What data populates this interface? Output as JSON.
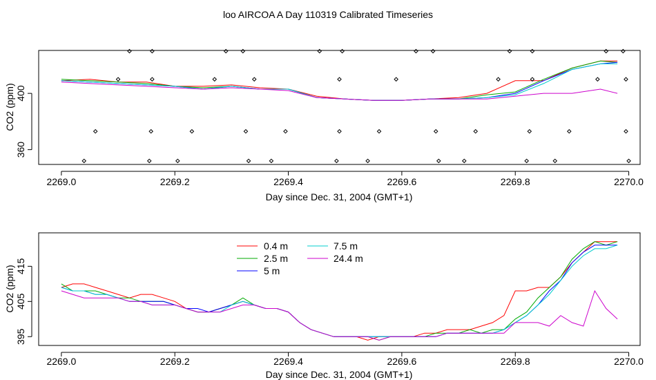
{
  "title": "loo AIRCOA A  Day 110319  Calibrated Timeseries",
  "chart_data": [
    {
      "type": "line",
      "xlabel": "Day since Dec. 31, 2004 (GMT+1)",
      "ylabel": "CO2 (ppm)",
      "xlim": [
        2268.96,
        2270.02
      ],
      "ylim": [
        349.5,
        430.5
      ],
      "xticks": [
        2269.0,
        2269.2,
        2269.4,
        2269.6,
        2269.8,
        2270.0
      ],
      "xtick_labels": [
        "2269.0",
        "2269.2",
        "2269.4",
        "2269.6",
        "2269.8",
        "2270.0"
      ],
      "yticks": [
        360,
        400
      ],
      "ytick_labels": [
        "360",
        "400"
      ],
      "grid": false,
      "x": [
        2269.0,
        2269.05,
        2269.1,
        2269.15,
        2269.2,
        2269.25,
        2269.3,
        2269.35,
        2269.4,
        2269.45,
        2269.5,
        2269.55,
        2269.6,
        2269.65,
        2269.7,
        2269.75,
        2269.8,
        2269.85,
        2269.9,
        2269.95,
        2269.98
      ],
      "series": [
        {
          "name": "0.4 m",
          "color": "#ff0000",
          "values": [
            409,
            410,
            408,
            408,
            405,
            405,
            406,
            404,
            403,
            398,
            396,
            395,
            395,
            396,
            397,
            400,
            409,
            409,
            418,
            423,
            423
          ]
        },
        {
          "name": "2.5 m",
          "color": "#00aa00",
          "values": [
            410,
            409,
            408,
            407,
            405,
            404,
            405,
            403,
            403,
            397,
            396,
            395,
            395,
            396,
            396,
            399,
            401,
            410,
            418,
            423,
            422
          ]
        },
        {
          "name": "5 m",
          "color": "#0000ff",
          "values": [
            409,
            408,
            407,
            406,
            405,
            403,
            405,
            403,
            403,
            397,
            396,
            395,
            395,
            396,
            396,
            397,
            400,
            409,
            417,
            421,
            422
          ]
        },
        {
          "name": "7.5 m",
          "color": "#00cccc",
          "values": [
            409,
            408,
            407,
            406,
            405,
            403,
            405,
            403,
            403,
            397,
            396,
            395,
            395,
            396,
            396,
            397,
            399,
            407,
            417,
            421,
            421
          ]
        },
        {
          "name": "24.4 m",
          "color": "#cc00cc",
          "values": [
            408,
            407,
            406,
            405,
            404,
            403,
            404,
            403,
            402,
            397,
            396,
            395,
            395,
            396,
            396,
            396,
            398,
            400,
            400,
            403,
            400
          ]
        }
      ],
      "markers": [
        {
          "x": 2269.04,
          "y": 352
        },
        {
          "x": 2269.06,
          "y": 373
        },
        {
          "x": 2269.1,
          "y": 410
        },
        {
          "x": 2269.12,
          "y": 430
        },
        {
          "x": 2269.155,
          "y": 352
        },
        {
          "x": 2269.158,
          "y": 373
        },
        {
          "x": 2269.16,
          "y": 410
        },
        {
          "x": 2269.16,
          "y": 430
        },
        {
          "x": 2269.205,
          "y": 352
        },
        {
          "x": 2269.23,
          "y": 373
        },
        {
          "x": 2269.27,
          "y": 410
        },
        {
          "x": 2269.29,
          "y": 430
        },
        {
          "x": 2269.32,
          "y": 430
        },
        {
          "x": 2269.325,
          "y": 373
        },
        {
          "x": 2269.33,
          "y": 352
        },
        {
          "x": 2269.34,
          "y": 410
        },
        {
          "x": 2269.37,
          "y": 352
        },
        {
          "x": 2269.395,
          "y": 373
        },
        {
          "x": 2269.455,
          "y": 430
        },
        {
          "x": 2269.485,
          "y": 352
        },
        {
          "x": 2269.49,
          "y": 373
        },
        {
          "x": 2269.49,
          "y": 410
        },
        {
          "x": 2269.495,
          "y": 430
        },
        {
          "x": 2269.54,
          "y": 352
        },
        {
          "x": 2269.56,
          "y": 373
        },
        {
          "x": 2269.59,
          "y": 410
        },
        {
          "x": 2269.625,
          "y": 430
        },
        {
          "x": 2269.655,
          "y": 430
        },
        {
          "x": 2269.66,
          "y": 373
        },
        {
          "x": 2269.665,
          "y": 352
        },
        {
          "x": 2269.71,
          "y": 352
        },
        {
          "x": 2269.73,
          "y": 373
        },
        {
          "x": 2269.77,
          "y": 410
        },
        {
          "x": 2269.79,
          "y": 430
        },
        {
          "x": 2269.82,
          "y": 352
        },
        {
          "x": 2269.825,
          "y": 373
        },
        {
          "x": 2269.83,
          "y": 410
        },
        {
          "x": 2269.83,
          "y": 430
        },
        {
          "x": 2269.87,
          "y": 352
        },
        {
          "x": 2269.895,
          "y": 373
        },
        {
          "x": 2269.945,
          "y": 410
        },
        {
          "x": 2269.96,
          "y": 430
        },
        {
          "x": 2269.99,
          "y": 430
        },
        {
          "x": 2269.995,
          "y": 373
        },
        {
          "x": 2269.995,
          "y": 410
        },
        {
          "x": 2270.0,
          "y": 352
        }
      ]
    },
    {
      "type": "line",
      "xlabel": "Day since Dec. 31, 2004 (GMT+1)",
      "ylabel": "CO2 (ppm)",
      "xlim": [
        2268.96,
        2270.02
      ],
      "ylim": [
        392.5,
        424.5
      ],
      "xticks": [
        2269.0,
        2269.2,
        2269.4,
        2269.6,
        2269.8,
        2270.0
      ],
      "xtick_labels": [
        "2269.0",
        "2269.2",
        "2269.4",
        "2269.6",
        "2269.8",
        "2270.0"
      ],
      "yticks": [
        395,
        405,
        415
      ],
      "ytick_labels": [
        "395",
        "405",
        "415"
      ],
      "grid": false,
      "legend": "top-left",
      "x": [
        2269.0,
        2269.02,
        2269.04,
        2269.06,
        2269.08,
        2269.1,
        2269.12,
        2269.14,
        2269.16,
        2269.18,
        2269.2,
        2269.22,
        2269.24,
        2269.26,
        2269.28,
        2269.3,
        2269.32,
        2269.34,
        2269.36,
        2269.38,
        2269.4,
        2269.42,
        2269.44,
        2269.46,
        2269.48,
        2269.5,
        2269.52,
        2269.54,
        2269.56,
        2269.58,
        2269.6,
        2269.62,
        2269.64,
        2269.66,
        2269.68,
        2269.7,
        2269.72,
        2269.74,
        2269.76,
        2269.78,
        2269.8,
        2269.82,
        2269.84,
        2269.86,
        2269.88,
        2269.9,
        2269.92,
        2269.94,
        2269.96,
        2269.98
      ],
      "series": [
        {
          "name": "0.4 m",
          "color": "#ff0000",
          "values": [
            409,
            410,
            410,
            409,
            408,
            407,
            406,
            407,
            407,
            406,
            405,
            403,
            402,
            402,
            403,
            404,
            405,
            404,
            403,
            403,
            402,
            399,
            397,
            396,
            395,
            395,
            395,
            394,
            395,
            395,
            395,
            395,
            396,
            396,
            397,
            397,
            397,
            398,
            399,
            401,
            408,
            408,
            409,
            409,
            412,
            416,
            419,
            422,
            422,
            422
          ]
        },
        {
          "name": "2.5 m",
          "color": "#00aa00",
          "values": [
            410,
            408,
            408,
            408,
            407,
            406,
            406,
            405,
            405,
            405,
            404,
            403,
            402,
            402,
            403,
            404,
            406,
            404,
            403,
            403,
            402,
            399,
            397,
            396,
            395,
            395,
            395,
            395,
            394,
            395,
            395,
            395,
            395,
            396,
            396,
            396,
            397,
            396,
            397,
            397,
            400,
            402,
            406,
            409,
            412,
            417,
            420,
            422,
            421,
            422
          ]
        },
        {
          "name": "5 m",
          "color": "#0000ff",
          "values": [
            409,
            408,
            408,
            407,
            407,
            406,
            405,
            405,
            405,
            405,
            404,
            403,
            403,
            402,
            403,
            404,
            405,
            404,
            403,
            403,
            402,
            399,
            397,
            396,
            395,
            395,
            395,
            395,
            395,
            395,
            395,
            395,
            395,
            395,
            396,
            396,
            396,
            396,
            396,
            397,
            399,
            401,
            404,
            408,
            411,
            416,
            419,
            421,
            421,
            421
          ]
        },
        {
          "name": "7.5 m",
          "color": "#00cccc",
          "values": [
            409,
            408,
            408,
            407,
            407,
            406,
            405,
            405,
            404,
            404,
            404,
            403,
            402,
            402,
            402,
            404,
            405,
            404,
            403,
            403,
            402,
            399,
            397,
            396,
            395,
            395,
            395,
            395,
            395,
            395,
            395,
            395,
            395,
            395,
            396,
            396,
            396,
            396,
            396,
            397,
            399,
            401,
            404,
            407,
            411,
            415,
            418,
            420,
            420,
            421
          ]
        },
        {
          "name": "24.4 m",
          "color": "#cc00cc",
          "values": [
            408,
            407,
            406,
            406,
            406,
            406,
            405,
            405,
            404,
            404,
            404,
            403,
            402,
            402,
            402,
            403,
            404,
            404,
            403,
            403,
            402,
            399,
            397,
            396,
            395,
            395,
            395,
            395,
            394,
            395,
            395,
            395,
            395,
            395,
            396,
            396,
            396,
            396,
            396,
            396,
            399,
            399,
            399,
            398,
            401,
            399,
            398,
            408,
            403,
            400
          ]
        }
      ]
    }
  ]
}
